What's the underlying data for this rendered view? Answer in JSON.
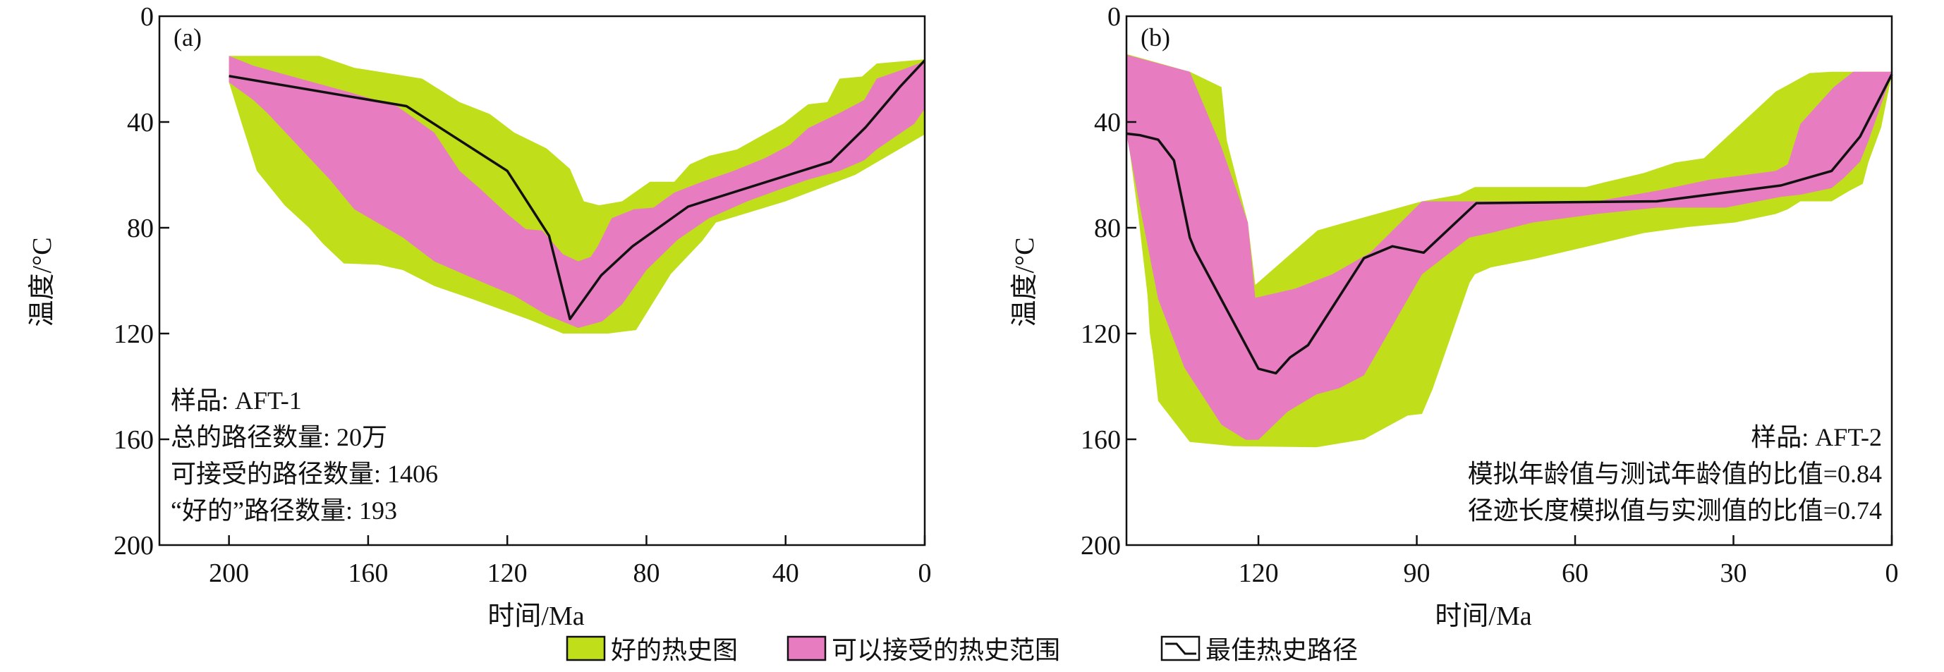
{
  "legend": {
    "good": "好的热史图",
    "acceptable": "可以接受的热史范围",
    "best": "最佳热史路径"
  },
  "colors": {
    "good": "#c0df1a",
    "acceptable": "#e87cc1",
    "best": "#111111"
  },
  "chart_data": [
    {
      "type": "area",
      "panel_label": "(a)",
      "xlabel": "时间/Ma",
      "ylabel": "温度/°C",
      "xlim": [
        220,
        0
      ],
      "ylim": [
        0,
        200
      ],
      "xticks": [
        200,
        160,
        120,
        80,
        40,
        0
      ],
      "yticks": [
        0,
        40,
        80,
        120,
        160,
        200
      ],
      "annotations": [
        "样品: AFT-1",
        "总的路径数量: 20万",
        "可接受的路径数量: 1406",
        "“好的”路径数量: 193"
      ],
      "good_envelope": [
        [
          200,
          15
        ],
        [
          174,
          15
        ],
        [
          164,
          19.5
        ],
        [
          144.5,
          23.6
        ],
        [
          133.7,
          32.5
        ],
        [
          125,
          37
        ],
        [
          118,
          44
        ],
        [
          108.7,
          50
        ],
        [
          102,
          57.7
        ],
        [
          98,
          70
        ],
        [
          93.6,
          71.5
        ],
        [
          87,
          70
        ],
        [
          79,
          62.6
        ],
        [
          72,
          62.6
        ],
        [
          67.5,
          56
        ],
        [
          62,
          52.8
        ],
        [
          54,
          50.4
        ],
        [
          48,
          46
        ],
        [
          40.6,
          40.6
        ],
        [
          36,
          35.8
        ],
        [
          33.5,
          33.3
        ],
        [
          28,
          32.5
        ],
        [
          24.5,
          23.6
        ],
        [
          18,
          22.8
        ],
        [
          13.8,
          17.9
        ],
        [
          0,
          16.3
        ],
        [
          0,
          44.7
        ],
        [
          20,
          60
        ],
        [
          40,
          70
        ],
        [
          60,
          78
        ],
        [
          64,
          85
        ],
        [
          73,
          97.5
        ],
        [
          83,
          118.7
        ],
        [
          91,
          120
        ],
        [
          104,
          120
        ],
        [
          114,
          114.6
        ],
        [
          130,
          107
        ],
        [
          141,
          102
        ],
        [
          150,
          96
        ],
        [
          157,
          94
        ],
        [
          167,
          93.5
        ],
        [
          173,
          86
        ],
        [
          177,
          80
        ],
        [
          184,
          71.5
        ],
        [
          192,
          58.5
        ],
        [
          196,
          42
        ],
        [
          200,
          25
        ]
      ],
      "acceptable_envelope": [
        [
          200,
          15
        ],
        [
          193,
          18.7
        ],
        [
          184,
          22
        ],
        [
          166,
          28.5
        ],
        [
          151.7,
          34
        ],
        [
          141,
          44
        ],
        [
          133.7,
          58.5
        ],
        [
          128,
          65
        ],
        [
          120,
          74.8
        ],
        [
          114.7,
          80.5
        ],
        [
          110,
          81
        ],
        [
          104,
          90
        ],
        [
          99.6,
          92.7
        ],
        [
          96,
          91
        ],
        [
          94,
          87
        ],
        [
          90,
          76.4
        ],
        [
          83.6,
          73
        ],
        [
          78,
          72.4
        ],
        [
          72,
          66.7
        ],
        [
          64,
          62.6
        ],
        [
          55,
          58.5
        ],
        [
          46,
          53.7
        ],
        [
          38.9,
          48.8
        ],
        [
          33.5,
          42.3
        ],
        [
          24.5,
          36.6
        ],
        [
          17.4,
          31.7
        ],
        [
          13.8,
          23.6
        ],
        [
          6.6,
          20.3
        ],
        [
          0,
          17
        ],
        [
          0,
          35
        ],
        [
          3,
          40.7
        ],
        [
          8.4,
          45.5
        ],
        [
          13.8,
          50.4
        ],
        [
          17.4,
          54.5
        ],
        [
          24.5,
          58.5
        ],
        [
          33.5,
          61.8
        ],
        [
          40.6,
          65
        ],
        [
          51,
          70
        ],
        [
          62,
          76.4
        ],
        [
          71,
          84.5
        ],
        [
          80,
          96
        ],
        [
          87,
          109
        ],
        [
          92.7,
          115.4
        ],
        [
          99.6,
          117.9
        ],
        [
          108.7,
          113
        ],
        [
          118,
          105.7
        ],
        [
          130,
          99
        ],
        [
          141,
          92.7
        ],
        [
          150,
          83.7
        ],
        [
          164,
          73
        ],
        [
          171,
          61.8
        ],
        [
          178,
          52
        ],
        [
          189,
          36.6
        ],
        [
          193,
          31.7
        ],
        [
          200,
          25
        ]
      ],
      "best_path": [
        [
          200,
          22.6
        ],
        [
          149,
          34
        ],
        [
          120,
          58.5
        ],
        [
          108,
          83
        ],
        [
          102,
          114.5
        ],
        [
          93,
          98
        ],
        [
          84,
          87
        ],
        [
          68,
          72
        ],
        [
          62,
          69.5
        ],
        [
          27,
          55
        ],
        [
          17,
          42
        ],
        [
          7,
          26.5
        ],
        [
          0,
          16.7
        ]
      ]
    },
    {
      "type": "area",
      "panel_label": "(b)",
      "xlabel": "时间/Ma",
      "ylabel": "温度/°C",
      "xlim": [
        145,
        0
      ],
      "ylim": [
        0,
        200
      ],
      "xticks": [
        120,
        90,
        60,
        30,
        0
      ],
      "yticks": [
        0,
        40,
        80,
        120,
        160,
        200
      ],
      "annotations": [
        "样品: AFT-2",
        "模拟年龄值与测试年龄值的比值=0.84",
        "径迹长度模拟值与实测值的比值=0.74"
      ],
      "good_envelope": [
        [
          145,
          14.3
        ],
        [
          133,
          21
        ],
        [
          127,
          26.8
        ],
        [
          126.5,
          36.6
        ],
        [
          126,
          47
        ],
        [
          122,
          78
        ],
        [
          120.6,
          101.6
        ],
        [
          108.8,
          81
        ],
        [
          103.5,
          78
        ],
        [
          89,
          70
        ],
        [
          82,
          67.5
        ],
        [
          79,
          64.6
        ],
        [
          58,
          64.6
        ],
        [
          54,
          62.6
        ],
        [
          47,
          59.3
        ],
        [
          41,
          55.3
        ],
        [
          35.6,
          53.7
        ],
        [
          22,
          28.5
        ],
        [
          15.6,
          21.5
        ],
        [
          11.4,
          21
        ],
        [
          0,
          21
        ],
        [
          0,
          22
        ],
        [
          2,
          42
        ],
        [
          4.4,
          55
        ],
        [
          5.5,
          63.4
        ],
        [
          8,
          66
        ],
        [
          11.4,
          70
        ],
        [
          17.3,
          70
        ],
        [
          19.7,
          73
        ],
        [
          22,
          74.8
        ],
        [
          29.7,
          78
        ],
        [
          38.6,
          79.7
        ],
        [
          47,
          82
        ],
        [
          57.5,
          87
        ],
        [
          68,
          91.9
        ],
        [
          76,
          95
        ],
        [
          79,
          97.6
        ],
        [
          80,
          100.8
        ],
        [
          87,
          141
        ],
        [
          89,
          150.4
        ],
        [
          91.7,
          151
        ],
        [
          100,
          160
        ],
        [
          109,
          163
        ],
        [
          124.7,
          162.6
        ],
        [
          133,
          161
        ],
        [
          139,
          145.5
        ],
        [
          139.5,
          136.6
        ],
        [
          140,
          127.6
        ],
        [
          140.6,
          119.5
        ],
        [
          141,
          105.7
        ],
        [
          142.7,
          76.4
        ],
        [
          145,
          42
        ]
      ],
      "acceptable_envelope": [
        [
          145,
          14.6
        ],
        [
          133,
          21
        ],
        [
          127,
          49.6
        ],
        [
          122,
          78
        ],
        [
          120.6,
          106.5
        ],
        [
          113,
          103
        ],
        [
          106,
          97.6
        ],
        [
          98.8,
          89.4
        ],
        [
          89,
          70
        ],
        [
          56,
          70
        ],
        [
          44.5,
          66
        ],
        [
          34.5,
          61.8
        ],
        [
          22,
          58.5
        ],
        [
          19.7,
          56
        ],
        [
          17.3,
          40.7
        ],
        [
          11,
          26.8
        ],
        [
          7.3,
          21
        ],
        [
          0,
          21
        ],
        [
          0,
          22
        ],
        [
          4.4,
          47
        ],
        [
          6,
          55
        ],
        [
          9,
          61
        ],
        [
          11.4,
          65
        ],
        [
          17.3,
          67.5
        ],
        [
          21,
          68.3
        ],
        [
          31.5,
          72.4
        ],
        [
          44.5,
          72.4
        ],
        [
          56,
          74.8
        ],
        [
          68,
          78
        ],
        [
          76,
          82
        ],
        [
          80,
          83.7
        ],
        [
          89,
          97.6
        ],
        [
          100,
          135.8
        ],
        [
          104.7,
          140.7
        ],
        [
          109,
          143
        ],
        [
          114.5,
          149.6
        ],
        [
          120,
          160.2
        ],
        [
          122.4,
          160.2
        ],
        [
          127,
          154.5
        ],
        [
          134,
          133
        ],
        [
          139,
          107
        ],
        [
          142.5,
          71.5
        ],
        [
          145,
          44.7
        ]
      ],
      "best_path": [
        [
          145,
          44.4
        ],
        [
          142.4,
          45
        ],
        [
          139,
          46.7
        ],
        [
          136,
          54.5
        ],
        [
          133,
          83.7
        ],
        [
          132,
          88.6
        ],
        [
          120,
          133.3
        ],
        [
          116.7,
          135
        ],
        [
          114,
          129
        ],
        [
          110.6,
          124.4
        ],
        [
          100,
          91.5
        ],
        [
          94.6,
          87
        ],
        [
          88.7,
          89.4
        ],
        [
          78.7,
          70.7
        ],
        [
          44.5,
          70
        ],
        [
          21,
          64
        ],
        [
          11.4,
          58.5
        ],
        [
          6,
          45.5
        ],
        [
          0,
          22
        ]
      ]
    }
  ]
}
